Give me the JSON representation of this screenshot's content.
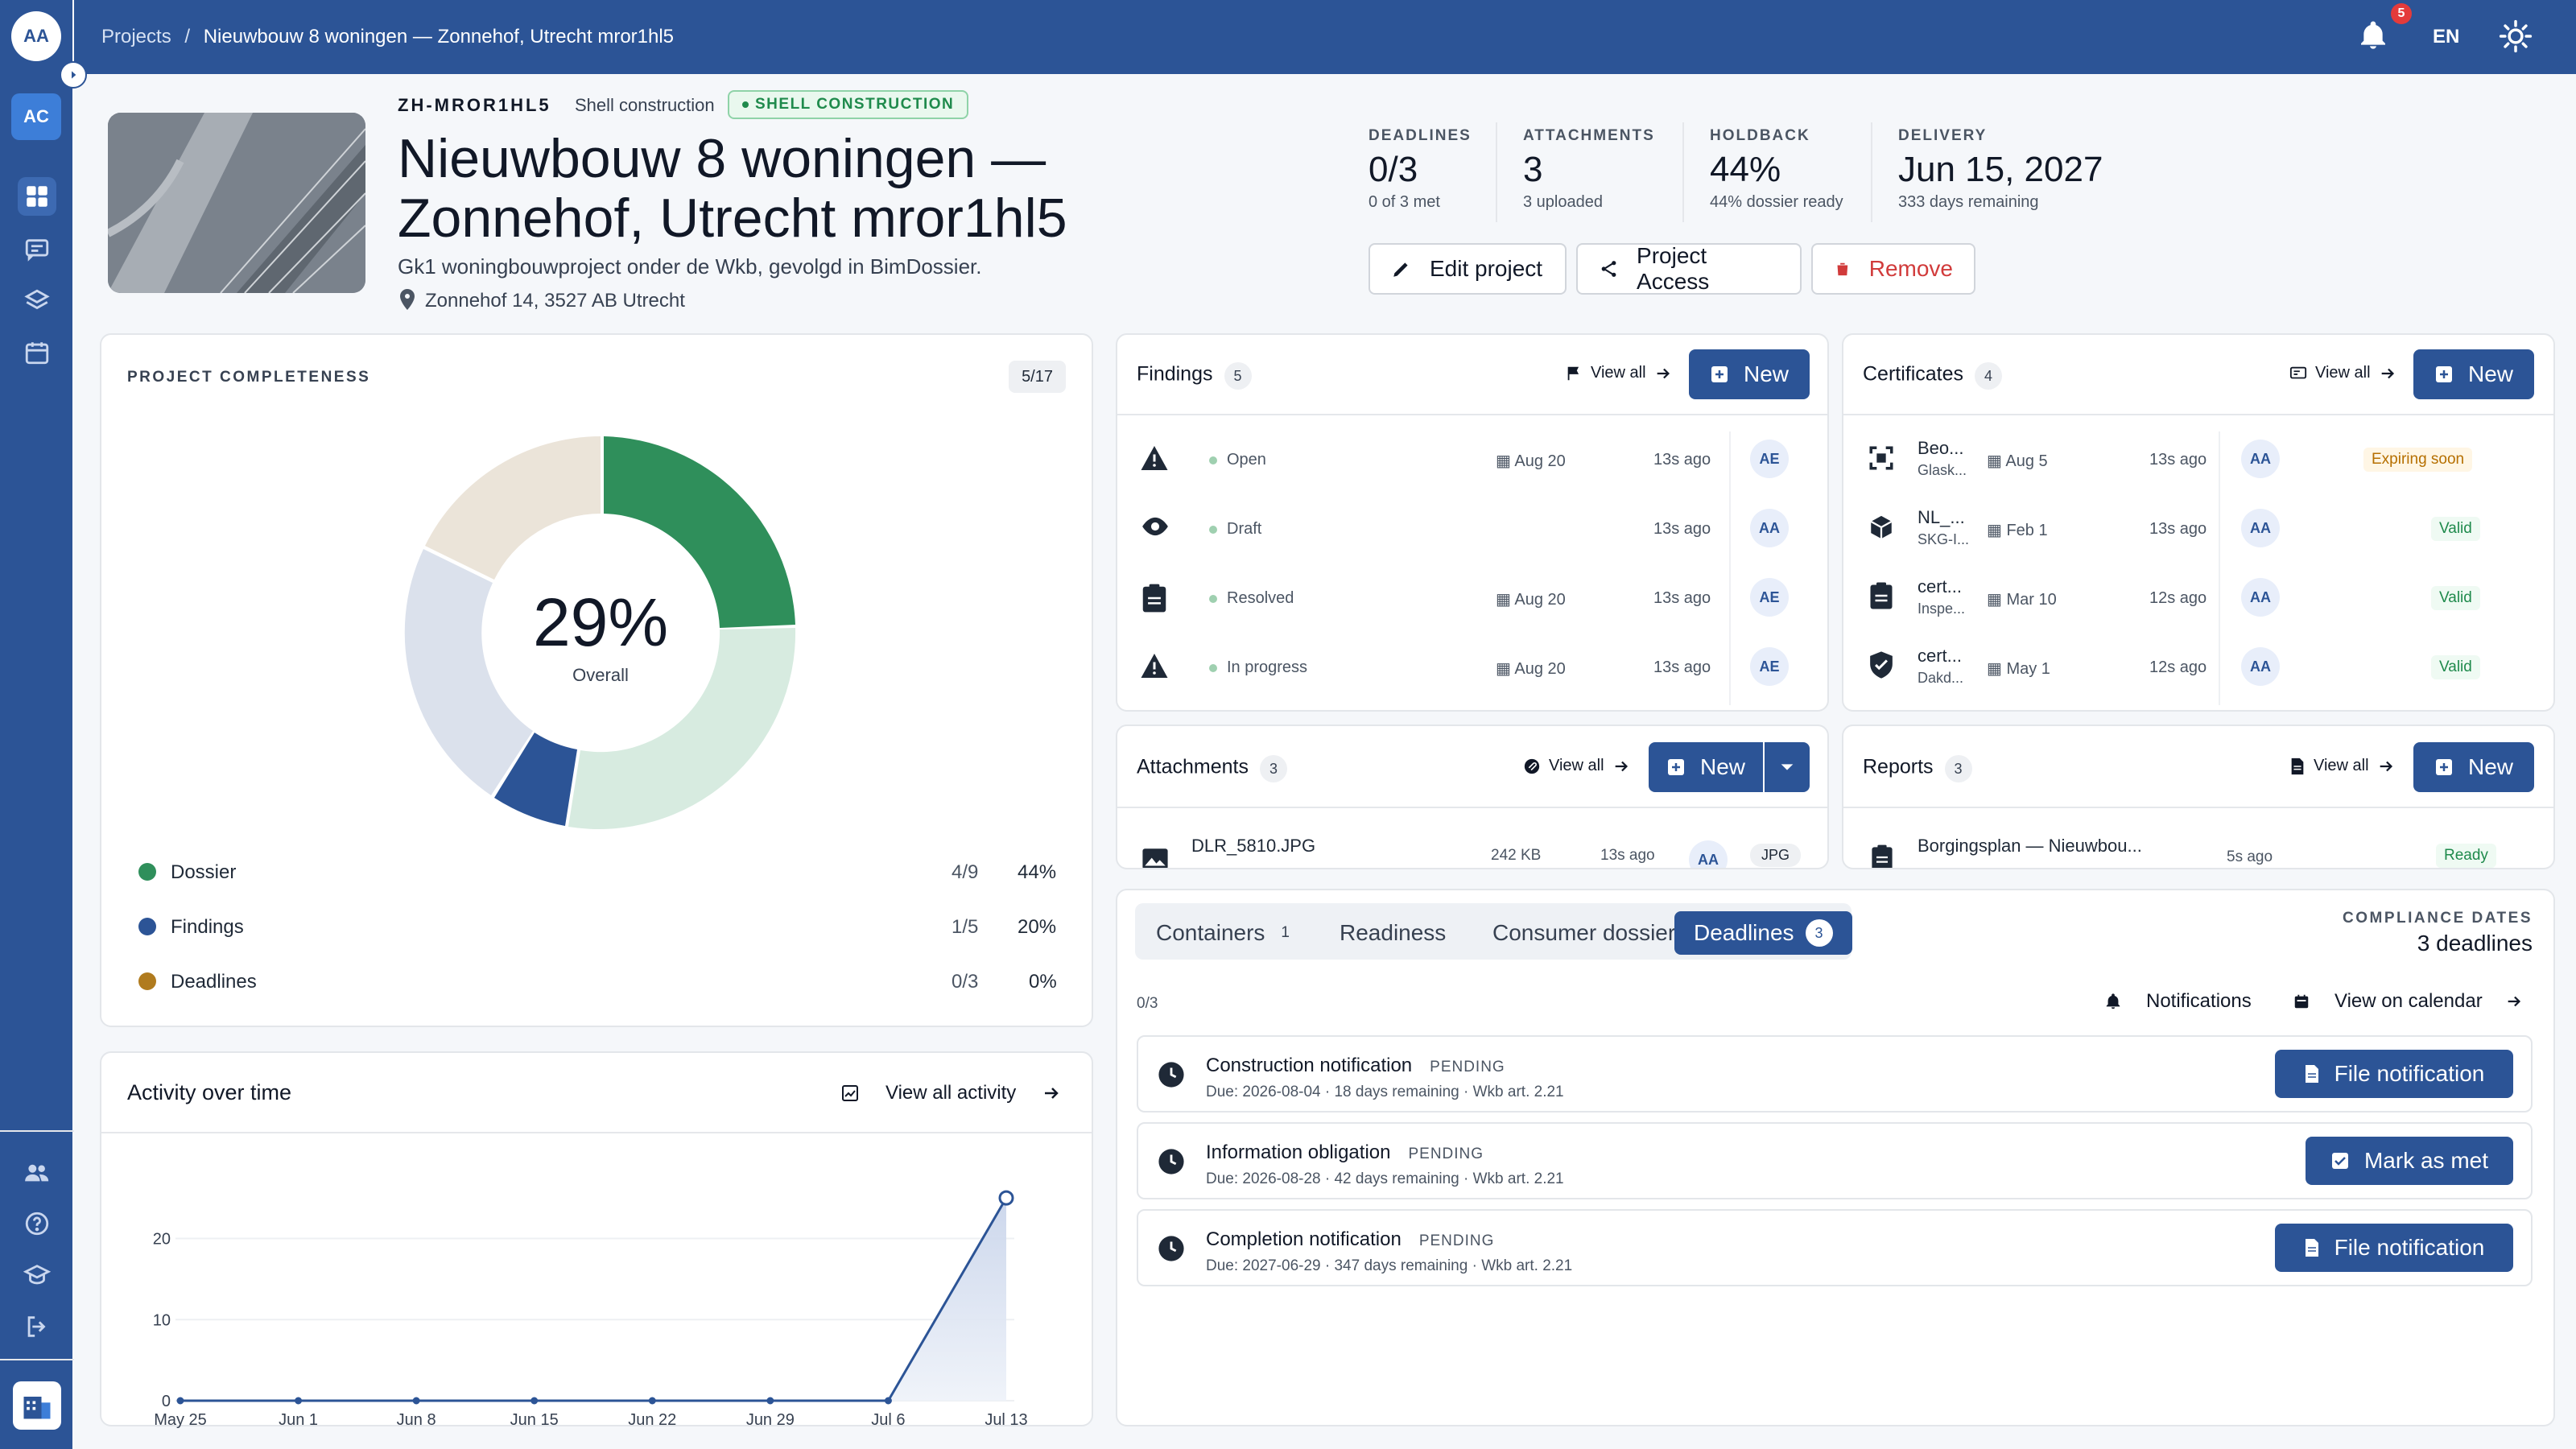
{
  "topbar": {
    "user_initials": "AA",
    "breadcrumb_root": "Projects",
    "breadcrumb_sep": "/",
    "breadcrumb_current": "Nieuwbouw 8 woningen — Zonnehof, Utrecht mror1hl5",
    "notification_count": "5",
    "language": "EN"
  },
  "sidebar": {
    "org_initials": "AC",
    "items": [
      "dashboard-icon",
      "messages-icon",
      "layers-icon",
      "calendar-icon",
      "team-icon",
      "help-icon",
      "learn-icon",
      "logout-icon"
    ]
  },
  "project": {
    "code": "ZH-MROR1HL5",
    "phase": "Shell construction",
    "status": "SHELL CONSTRUCTION",
    "title": "Nieuwbouw 8 woningen — Zonnehof, Utrecht mror1hl5",
    "description": "Gk1 woningbouwproject onder de Wkb, gevolgd in BimDossier.",
    "address": "Zonnehof 14, 3527 AB Utrecht"
  },
  "kpis": [
    {
      "label": "DEADLINES",
      "value": "0/3",
      "sub": "0 of 3 met"
    },
    {
      "label": "ATTACHMENTS",
      "value": "3",
      "sub": "3 uploaded"
    },
    {
      "label": "HOLDBACK",
      "value": "44%",
      "sub": "44% dossier ready"
    },
    {
      "label": "DELIVERY",
      "value": "Jun 15, 2027",
      "sub": "333 days remaining"
    }
  ],
  "actions": {
    "edit": "Edit project",
    "access": "Project Access",
    "remove": "Remove"
  },
  "completeness": {
    "title": "PROJECT COMPLETENESS",
    "count": "5/17",
    "percent": "29%",
    "overall": "Overall",
    "rows": [
      {
        "name": "Dossier",
        "ratio": "4/9",
        "pct": "44%",
        "color": "#2f8f5b"
      },
      {
        "name": "Findings",
        "ratio": "1/5",
        "pct": "20%",
        "color": "#2c5496"
      },
      {
        "name": "Deadlines",
        "ratio": "0/3",
        "pct": "0%",
        "color": "#b07b1e"
      }
    ]
  },
  "activity": {
    "title": "Activity over time",
    "view_all": "View all activity"
  },
  "chart_data": {
    "type": "line",
    "x": [
      "May 25",
      "Jun 1",
      "Jun 8",
      "Jun 15",
      "Jun 22",
      "Jun 29",
      "Jul 6",
      "Jul 13"
    ],
    "series": [
      {
        "values": [
          0,
          0,
          0,
          0,
          0,
          0,
          0,
          25
        ]
      }
    ],
    "yticks": [
      "0",
      "10",
      "20"
    ],
    "ylim": [
      0,
      27
    ],
    "title": "",
    "xlabel": "",
    "ylabel": ""
  },
  "findings": {
    "title": "Findings",
    "count": "5",
    "view_all": "View all",
    "new": "New",
    "rows": [
      {
        "icon": "warning-icon",
        "status": "Open",
        "date": "Aug 20",
        "ago": "13s ago",
        "avatar": "AE"
      },
      {
        "icon": "eye-icon",
        "status": "Draft",
        "date": "",
        "ago": "13s ago",
        "avatar": "AA"
      },
      {
        "icon": "clipboard-icon",
        "status": "Resolved",
        "date": "Aug 20",
        "ago": "13s ago",
        "avatar": "AE"
      },
      {
        "icon": "warning-icon",
        "status": "In progress",
        "date": "Aug 20",
        "ago": "13s ago",
        "avatar": "AE"
      }
    ]
  },
  "certificates": {
    "title": "Certificates",
    "count": "4",
    "view_all": "View all",
    "new": "New",
    "rows": [
      {
        "name": "Beo...",
        "sub": "Glask...",
        "date": "Aug 5",
        "ago": "13s ago",
        "avatar": "AA",
        "status": "Expiring soon"
      },
      {
        "name": "NL_...",
        "sub": "SKG-I...",
        "date": "Feb 1",
        "ago": "13s ago",
        "avatar": "AA",
        "status": "Valid"
      },
      {
        "name": "cert...",
        "sub": "Inspe...",
        "date": "Mar 10",
        "ago": "12s ago",
        "avatar": "AA",
        "status": "Valid"
      },
      {
        "name": "cert...",
        "sub": "Dakd...",
        "date": "May 1",
        "ago": "12s ago",
        "avatar": "AA",
        "status": "Valid"
      }
    ]
  },
  "attachments": {
    "title": "Attachments",
    "count": "3",
    "view_all": "View all",
    "new": "New",
    "row": {
      "name": "DLR_5810.JPG",
      "size": "242 KB",
      "ago": "13s ago",
      "avatar": "AA",
      "type": "JPG"
    }
  },
  "reports": {
    "title": "Reports",
    "count": "3",
    "view_all": "View all",
    "new": "New",
    "row": {
      "name": "Borgingsplan — Nieuwbou...",
      "ago": "5s ago",
      "status": "Ready"
    }
  },
  "tabs": [
    {
      "label": "Containers",
      "count": "1"
    },
    {
      "label": "Readiness",
      "count": ""
    },
    {
      "label": "Consumer dossier",
      "count": ""
    },
    {
      "label": "Deadlines",
      "count": "3"
    }
  ],
  "compliance": {
    "label": "COMPLIANCE DATES",
    "value": "3 deadlines",
    "progress": "0/3",
    "notifications": "Notifications",
    "calendar": "View on calendar"
  },
  "deadlines": [
    {
      "title": "Construction notification",
      "status": "PENDING",
      "sub": "Due: 2026-08-04  ·  18 days remaining  ·  Wkb art. 2.21",
      "action": "File notification"
    },
    {
      "title": "Information obligation",
      "status": "PENDING",
      "sub": "Due: 2026-08-28  ·  42 days remaining  ·  Wkb art. 2.21",
      "action": "Mark as met"
    },
    {
      "title": "Completion notification",
      "status": "PENDING",
      "sub": "Due: 2027-06-29  ·  347 days remaining  ·  Wkb art. 2.21",
      "action": "File notification"
    }
  ]
}
